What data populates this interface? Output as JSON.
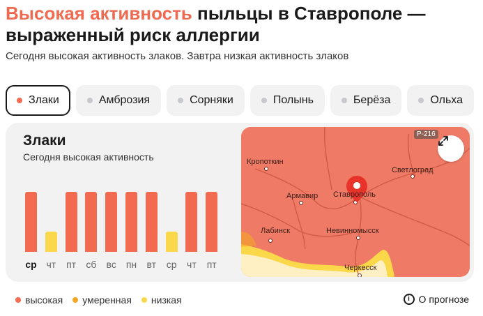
{
  "header": {
    "title_accent": "Высокая активность",
    "title_rest": " пыльцы в Ставрополе — выраженный риск аллергии",
    "subtitle": "Сегодня высокая активность злаков. Завтра низкая активность злаков"
  },
  "tabs": [
    {
      "label": "Злаки",
      "active": true
    },
    {
      "label": "Амброзия",
      "active": false
    },
    {
      "label": "Сорняки",
      "active": false
    },
    {
      "label": "Полынь",
      "active": false
    },
    {
      "label": "Берёза",
      "active": false
    },
    {
      "label": "Ольха",
      "active": false
    }
  ],
  "card": {
    "title": "Злаки",
    "subtitle": "Сегодня высокая активность"
  },
  "chart_data": {
    "type": "bar",
    "categories": [
      "ср",
      "чт",
      "пт",
      "сб",
      "вс",
      "пн",
      "вт",
      "ср",
      "чт",
      "пт"
    ],
    "levels": [
      "высокая",
      "низкая",
      "высокая",
      "высокая",
      "высокая",
      "высокая",
      "высокая",
      "низкая",
      "высокая",
      "высокая"
    ],
    "values": [
      3,
      1,
      3,
      3,
      3,
      3,
      3,
      1,
      3,
      3
    ],
    "ylim": [
      0,
      3
    ],
    "level_colors": {
      "высокая": "#f26a4f",
      "умеренная": "#f5a623",
      "низкая": "#fbd84a"
    }
  },
  "map": {
    "road_badge": "Р-216",
    "cities": [
      "Кропоткин",
      "Светлоград",
      "Армавир",
      "Ставрополь",
      "Лабинск",
      "Невинномысск",
      "Черкесск"
    ],
    "expand_icon": "expand-icon",
    "pin_icon": "location-pin-icon"
  },
  "legend": [
    {
      "label": "высокая",
      "color": "#f26a4f"
    },
    {
      "label": "умеренная",
      "color": "#f5a623"
    },
    {
      "label": "низкая",
      "color": "#fbd84a"
    }
  ],
  "about": {
    "label": "О прогнозе",
    "icon": "info-icon"
  }
}
